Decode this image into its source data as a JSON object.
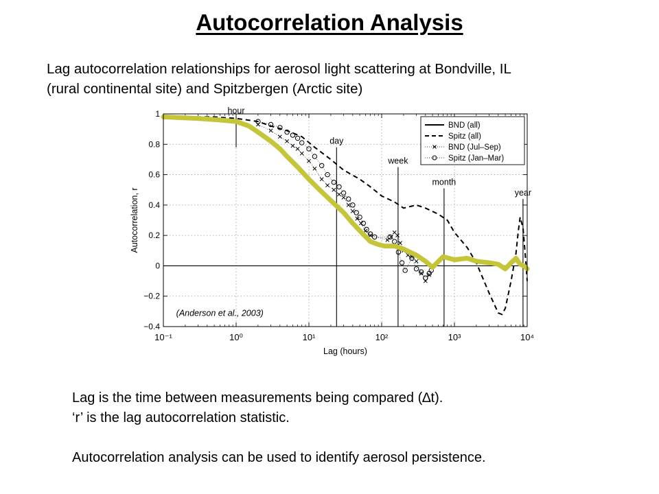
{
  "slide": {
    "title": "Autocorrelation Analysis",
    "intro_lines": [
      "Lag autocorrelation relationships for aerosol light scattering at Bondville, IL",
      "(rural continental site) and Spitzbergen (Arctic site)"
    ],
    "notes": [
      "Lag is the time between measurements being compared (∆t).",
      "‘r’ is the lag autocorrelation statistic.",
      "",
      "Autocorrelation analysis can be used to identify aerosol persistence."
    ]
  },
  "chart_data": {
    "type": "line",
    "title": "",
    "xlabel": "Lag (hours)",
    "ylabel": "Autocorrelation, r",
    "x_scale": "log",
    "xlim": [
      0.1,
      10000
    ],
    "ylim": [
      -0.4,
      1.0
    ],
    "x_tick_labels": [
      "10⁻¹",
      "10⁰",
      "10¹",
      "10²",
      "10³",
      "10⁴"
    ],
    "y_ticks": [
      -0.4,
      -0.2,
      0,
      0.2,
      0.4,
      0.6,
      0.8,
      1
    ],
    "y_tick_labels": [
      "−0.4",
      "−0.2",
      "0",
      "0.2",
      "0.4",
      "0.6",
      "0.8",
      "1"
    ],
    "grid": true,
    "legend_position": "top-right",
    "zero_line": true,
    "citation": "(Anderson et al., 2003)",
    "markers": [
      {
        "label": "hour",
        "x": 1,
        "y_top": 0.98,
        "y_bottom": 0.78
      },
      {
        "label": "day",
        "x": 24,
        "y_top": 0.78,
        "y_bottom": -0.4
      },
      {
        "label": "week",
        "x": 168,
        "y_top": 0.65,
        "y_bottom": -0.4
      },
      {
        "label": "month",
        "x": 720,
        "y_top": 0.51,
        "y_bottom": -0.4
      },
      {
        "label": "year",
        "x": 8760,
        "y_top": 0.44,
        "y_bottom": -0.4
      }
    ],
    "series": [
      {
        "name": "BND (all)",
        "style": "solid",
        "color": "#c5c53a",
        "x": [
          0.1,
          0.3,
          0.6,
          1,
          1.5,
          2,
          3,
          4,
          5,
          7,
          10,
          14,
          20,
          30,
          40,
          55,
          70,
          90,
          110,
          150,
          200,
          300,
          400,
          500,
          700,
          1000,
          1500,
          2000,
          3000,
          4000,
          5000,
          6000,
          7000,
          8000,
          9000,
          10000
        ],
        "y": [
          0.98,
          0.97,
          0.96,
          0.95,
          0.92,
          0.88,
          0.82,
          0.77,
          0.72,
          0.65,
          0.57,
          0.5,
          0.43,
          0.35,
          0.28,
          0.21,
          0.16,
          0.14,
          0.13,
          0.13,
          0.11,
          0.07,
          0.03,
          -0.01,
          0.06,
          0.04,
          0.05,
          0.03,
          0.02,
          0.01,
          -0.02,
          0.02,
          0.05,
          0.01,
          0.0,
          -0.02
        ]
      },
      {
        "name": "Spitz (all)",
        "style": "dashed",
        "color": "#000000",
        "x": [
          0.1,
          0.5,
          1,
          2,
          3,
          5,
          8,
          12,
          20,
          30,
          50,
          70,
          100,
          150,
          200,
          300,
          400,
          600,
          800,
          1000,
          1500,
          2000,
          3000,
          4000,
          4500,
          5000,
          6000,
          7000,
          7500,
          8000,
          8760,
          9500,
          10000
        ],
        "y": [
          0.98,
          0.98,
          0.97,
          0.95,
          0.92,
          0.89,
          0.85,
          0.78,
          0.7,
          0.63,
          0.57,
          0.52,
          0.46,
          0.42,
          0.38,
          0.4,
          0.38,
          0.34,
          0.3,
          0.22,
          0.12,
          0.02,
          -0.18,
          -0.31,
          -0.32,
          -0.28,
          -0.1,
          0.08,
          0.22,
          0.32,
          0.25,
          0.05,
          -0.1
        ]
      },
      {
        "name": "BND (Jul–Sep)",
        "style": "cross",
        "color": "#000000",
        "x": [
          2,
          3,
          4,
          5,
          6,
          7,
          8,
          10,
          12,
          15,
          18,
          22,
          26,
          30,
          35,
          40,
          46,
          52,
          60,
          70,
          120,
          135,
          150,
          165,
          180,
          200,
          230,
          260,
          300,
          350,
          400,
          450
        ],
        "y": [
          0.93,
          0.89,
          0.85,
          0.82,
          0.79,
          0.77,
          0.74,
          0.69,
          0.64,
          0.57,
          0.53,
          0.5,
          0.47,
          0.45,
          0.4,
          0.36,
          0.31,
          0.28,
          0.23,
          0.2,
          0.17,
          0.19,
          0.22,
          0.2,
          0.15,
          0.1,
          0.07,
          0.06,
          0.03,
          -0.05,
          -0.1,
          -0.06
        ]
      },
      {
        "name": "Spitz (Jan–Mar)",
        "style": "circle",
        "color": "#000000",
        "x": [
          2,
          3,
          4,
          5,
          6,
          7,
          8,
          10,
          12,
          15,
          18,
          22,
          26,
          30,
          35,
          40,
          45,
          50,
          56,
          62,
          70,
          80,
          130,
          150,
          170,
          190,
          210,
          260,
          300,
          350,
          400,
          450,
          480
        ],
        "y": [
          0.95,
          0.93,
          0.91,
          0.88,
          0.86,
          0.84,
          0.81,
          0.77,
          0.72,
          0.66,
          0.6,
          0.55,
          0.52,
          0.48,
          0.44,
          0.4,
          0.35,
          0.32,
          0.28,
          0.24,
          0.21,
          0.19,
          0.19,
          0.16,
          0.09,
          0.02,
          -0.03,
          0.05,
          -0.02,
          -0.04,
          -0.08,
          -0.05,
          -0.03
        ]
      }
    ]
  }
}
